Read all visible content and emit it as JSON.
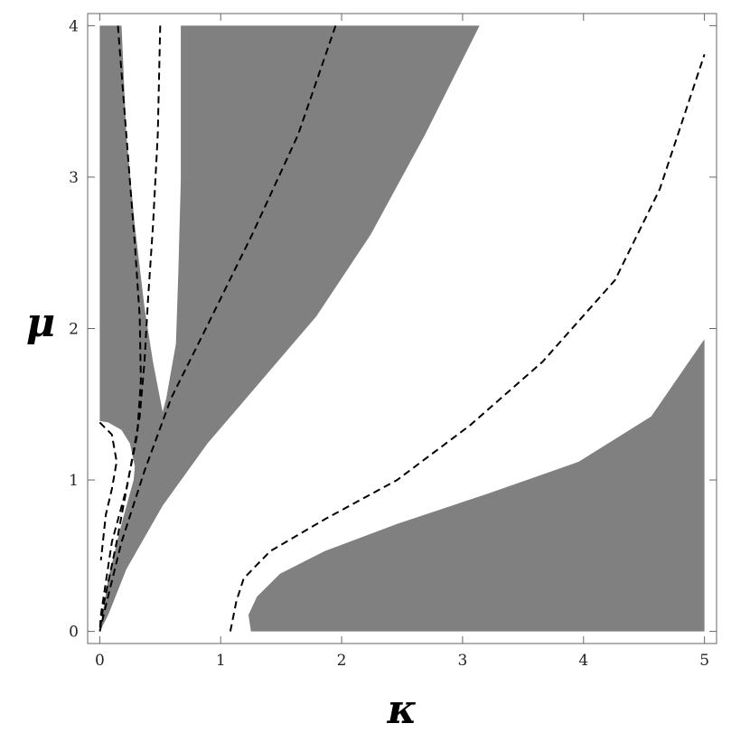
{
  "chart_data": {
    "type": "region",
    "x_label": "κ",
    "y_label": "μ",
    "xlim": [
      -0.1,
      5.1
    ],
    "ylim": [
      -0.08,
      4.08
    ],
    "xticks": [
      0,
      1,
      2,
      3,
      4,
      5
    ],
    "yticks": [
      0,
      1,
      2,
      3,
      4
    ],
    "region_color": "#808080",
    "curve_color": "#000000",
    "regions": [
      {
        "x": [
          0,
          0.18,
          0.22,
          0.29,
          0.37,
          0.44,
          0.52,
          0.55,
          0.63,
          0.65,
          0.67,
          0.67,
          3.14,
          2.69,
          2.24,
          1.79,
          1.34,
          0.89,
          0.52,
          0.22,
          0.07,
          0,
          0.07,
          0.18,
          0.28,
          0.29,
          0.25,
          0.18,
          0.07,
          0
        ],
        "y": [
          4,
          4,
          3.28,
          2.68,
          2.14,
          1.78,
          1.45,
          1.54,
          1.9,
          2.38,
          2.98,
          4,
          4,
          3.28,
          2.62,
          2.08,
          1.66,
          1.24,
          0.83,
          0.41,
          0.11,
          0,
          0.35,
          0.71,
          1.0,
          1.09,
          1.24,
          1.33,
          1.38,
          1.39
        ]
      },
      {
        "x": [
          1.25,
          1.23,
          1.3,
          1.49,
          1.86,
          2.46,
          3.21,
          3.96,
          4.56,
          5,
          5
        ],
        "y": [
          0,
          0.11,
          0.23,
          0.38,
          0.53,
          0.71,
          0.91,
          1.12,
          1.42,
          1.93,
          0
        ]
      }
    ],
    "curves": [
      {
        "x": [
          0.15,
          0.22,
          0.29,
          0.33,
          0.34,
          0.31,
          0.22,
          0.1,
          0.01,
          0
        ],
        "y": [
          4,
          3.28,
          2.56,
          2.08,
          1.66,
          1.3,
          0.94,
          0.59,
          0.11,
          0
        ]
      },
      {
        "x": [
          0.5,
          0.48,
          0.44,
          0.4,
          0.37,
          0.33,
          0.25,
          0.14,
          0.03,
          0
        ],
        "y": [
          4,
          3.28,
          2.68,
          2.2,
          1.78,
          1.42,
          1.06,
          0.59,
          0.17,
          0
        ]
      },
      {
        "x": [
          1.95,
          1.64,
          1.26,
          0.89,
          0.59,
          0.37,
          0.18,
          0.05,
          0
        ],
        "y": [
          4,
          3.28,
          2.62,
          2.02,
          1.54,
          1.06,
          0.59,
          0.17,
          0
        ]
      },
      {
        "x": [
          0,
          0.1,
          0.14,
          0.1,
          0.05,
          0.01
        ],
        "y": [
          1.38,
          1.3,
          1.12,
          0.94,
          0.77,
          0.47
        ]
      },
      {
        "x": [
          1.08,
          1.13,
          1.19,
          1.41,
          1.86,
          2.46,
          3.06,
          3.66,
          4.26,
          4.63,
          5
        ],
        "y": [
          0,
          0.2,
          0.35,
          0.53,
          0.74,
          1.0,
          1.36,
          1.78,
          2.32,
          2.92,
          3.81
        ]
      }
    ]
  }
}
